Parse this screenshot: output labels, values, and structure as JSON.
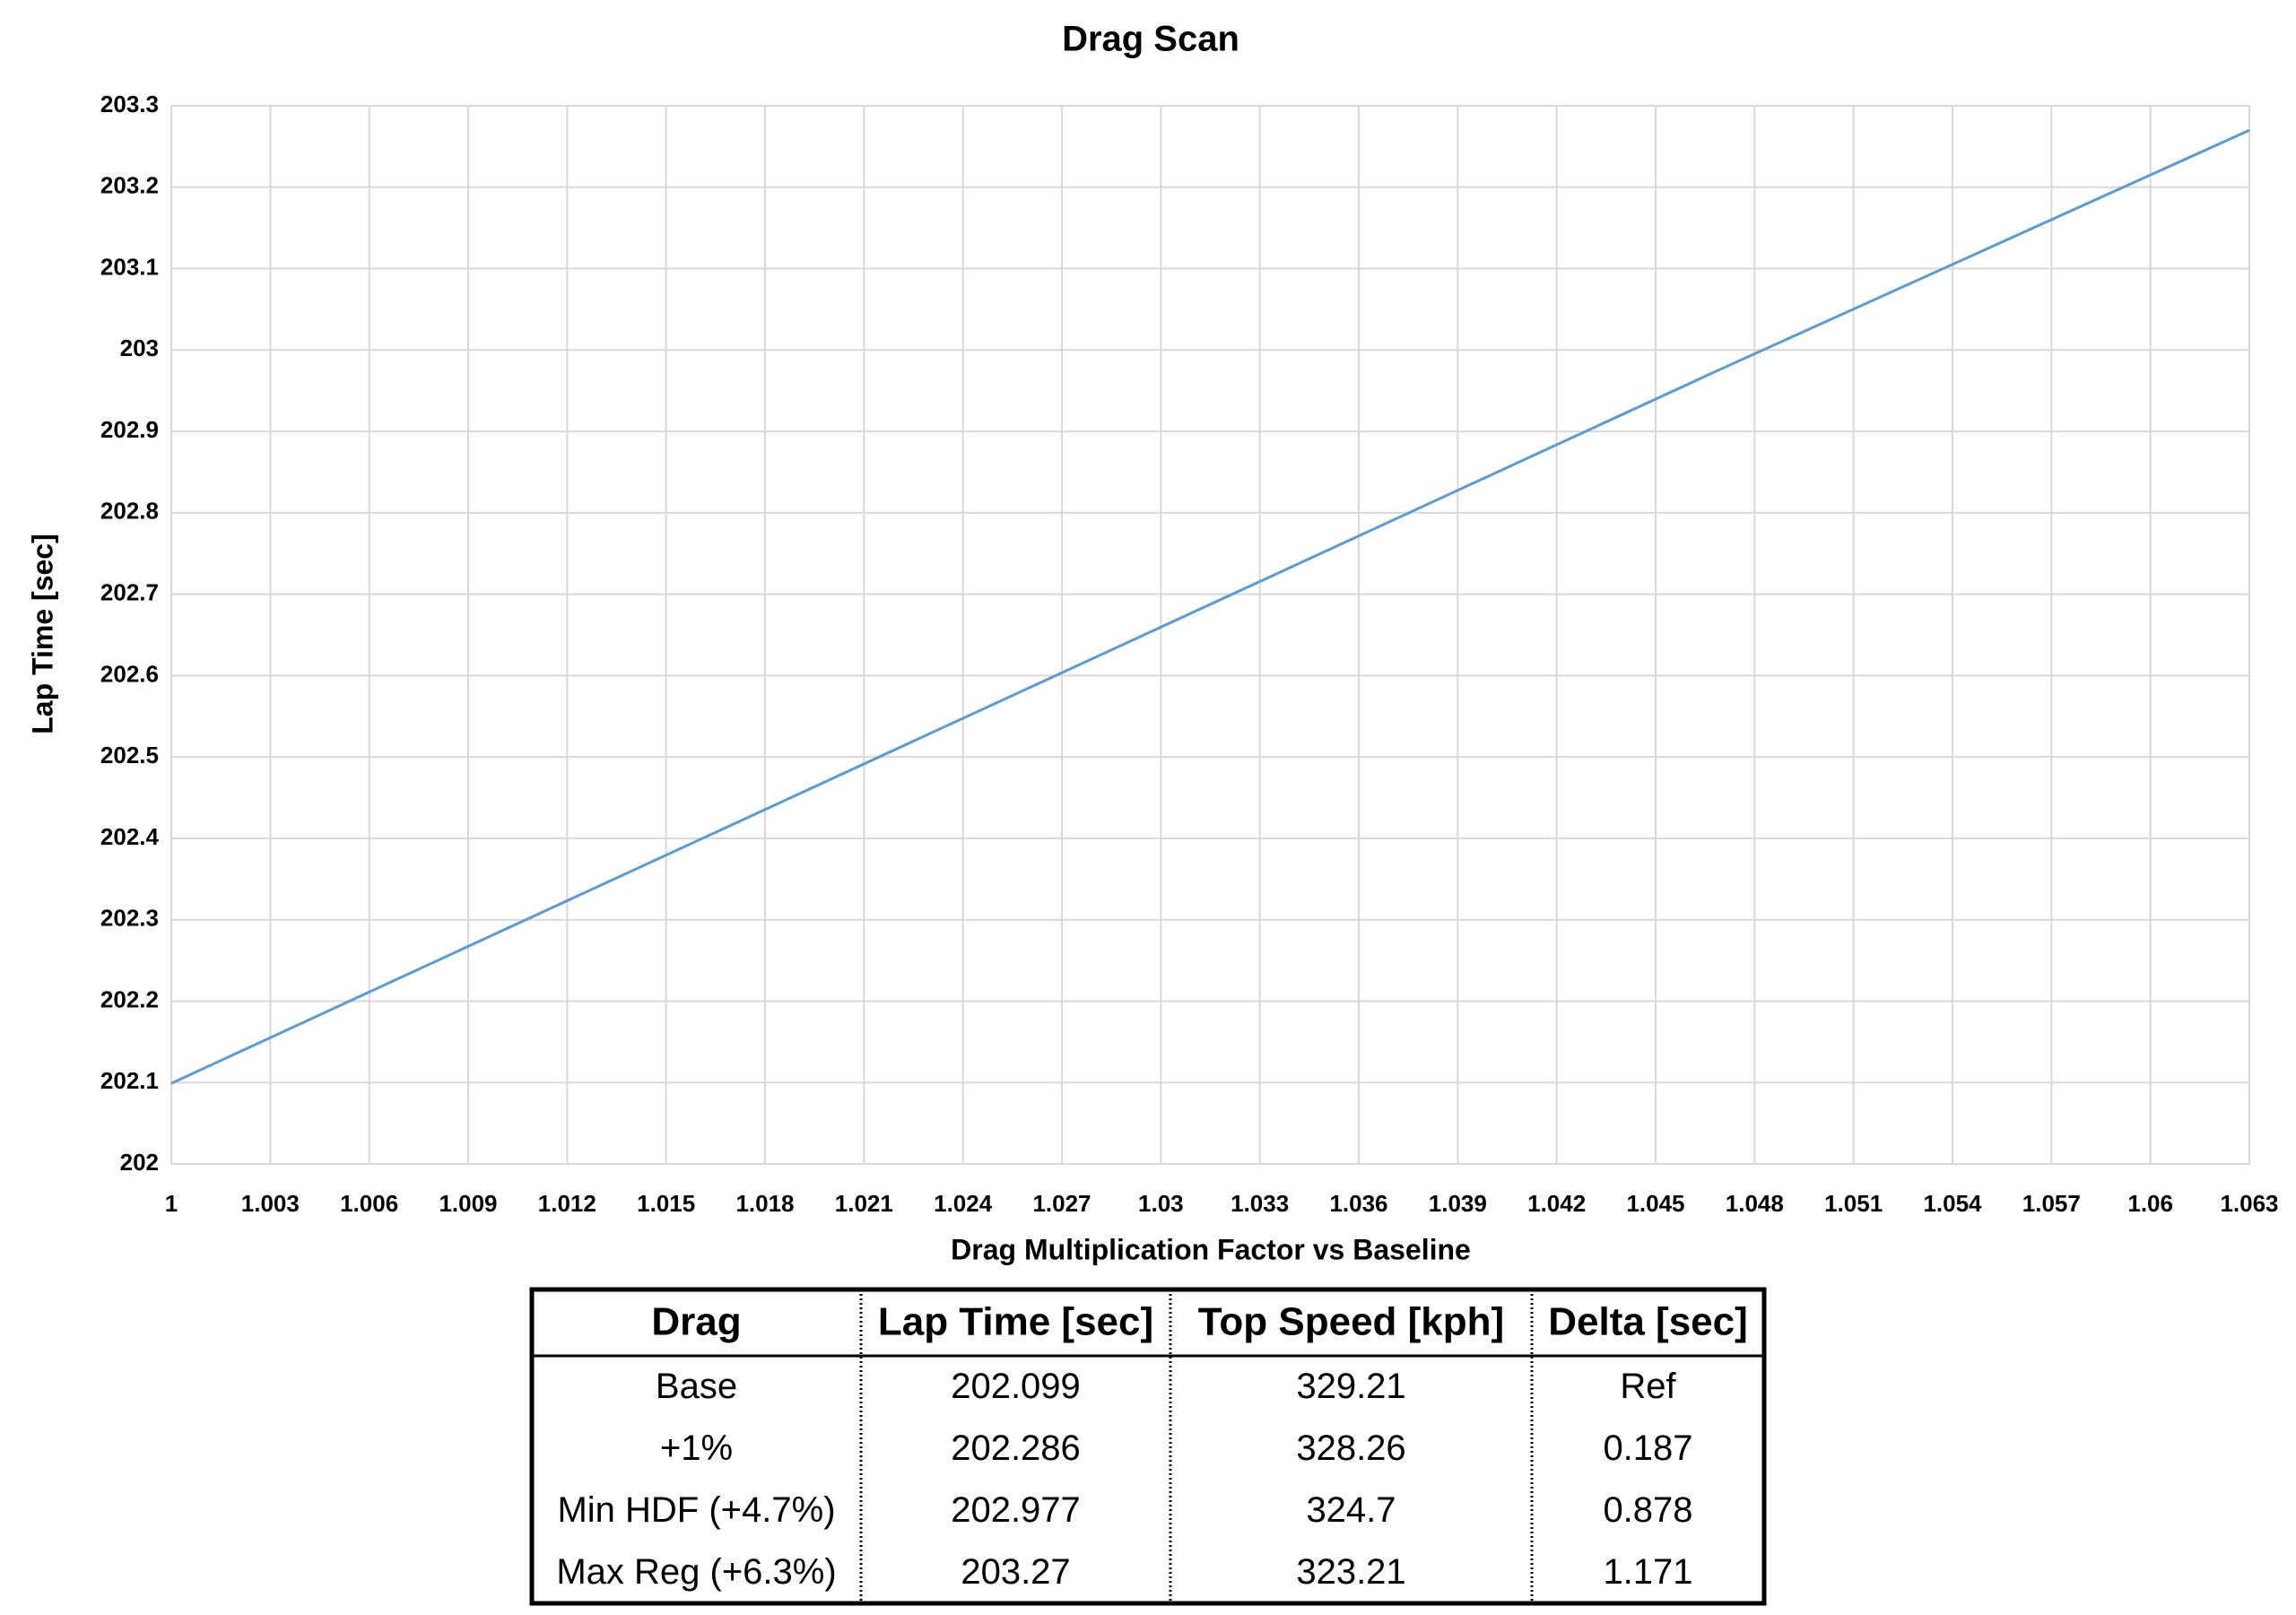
{
  "chart_data": {
    "type": "line",
    "title": "Drag Scan",
    "x_label": "Drag Multiplication Factor vs Baseline",
    "y_label": "Lap Time [sec]",
    "x": [
      1,
      1.01,
      1.047,
      1.063
    ],
    "values": [
      202.099,
      202.286,
      202.977,
      203.27
    ],
    "color": "#5b9bd5",
    "xlim": [
      1,
      1.063
    ],
    "xticks": [
      1,
      1.003,
      1.006,
      1.009,
      1.012,
      1.015,
      1.018,
      1.021,
      1.024,
      1.027,
      1.03,
      1.033,
      1.036,
      1.039,
      1.042,
      1.045,
      1.048,
      1.051,
      1.054,
      1.057,
      1.06,
      1.063
    ],
    "ylim": [
      202,
      203.3
    ],
    "yticks": [
      202,
      202.1,
      202.2,
      202.3,
      202.4,
      202.5,
      202.6,
      202.7,
      202.8,
      202.9,
      203,
      203.1,
      203.2,
      203.3
    ],
    "grid": true
  },
  "table": {
    "columns": [
      "Drag",
      "Lap Time [sec]",
      "Top Speed [kph]",
      "Delta [sec]"
    ],
    "rows": [
      [
        "Base",
        202.099,
        329.21,
        "Ref"
      ],
      [
        "+1%",
        202.286,
        328.26,
        0.187
      ],
      [
        "Min HDF (+4.7%)",
        202.977,
        324.7,
        0.878
      ],
      [
        "Max Reg (+6.3%)",
        203.27,
        323.21,
        1.171
      ]
    ]
  }
}
